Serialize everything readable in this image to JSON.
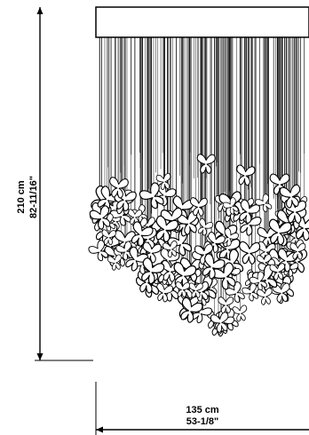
{
  "height_dimension": {
    "metric": "210 cm",
    "imperial": "82-11/16\""
  },
  "width_dimension": {
    "metric": "135 cm",
    "imperial": "53-1/8\""
  },
  "butterfly_count": 150
}
